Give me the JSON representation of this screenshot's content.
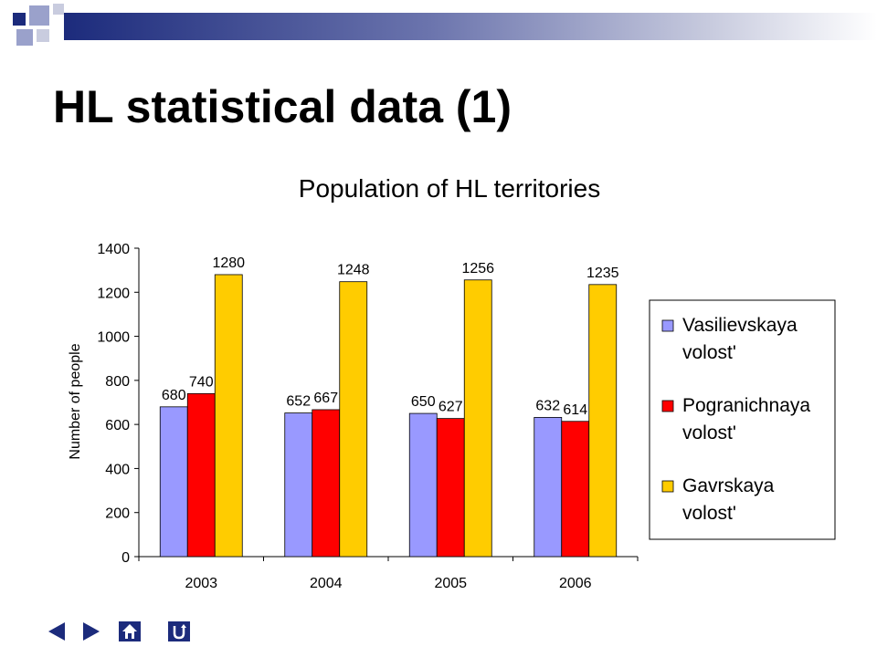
{
  "slide": {
    "title": "HL statistical data (1)"
  },
  "theme": {
    "deco_dark": "#1c2b7c",
    "deco_light": "#9aa1cb",
    "deco_pale": "#c9ccdf",
    "nav_button": "#1c2b7c"
  },
  "chart_data": {
    "type": "bar",
    "title": "Population of HL territories",
    "xlabel": "",
    "ylabel": "Number of people",
    "categories": [
      "2003",
      "2004",
      "2005",
      "2006"
    ],
    "ylim": [
      0,
      1400
    ],
    "yticks": [
      0,
      200,
      400,
      600,
      800,
      1000,
      1200,
      1400
    ],
    "grid": false,
    "legend_position": "right",
    "series": [
      {
        "name": "Vasilievskaya volost'",
        "color": "#9999ff",
        "values": [
          680,
          652,
          650,
          632
        ]
      },
      {
        "name": "Pogranichnaya volost'",
        "color": "#ff0000",
        "values": [
          740,
          667,
          627,
          614
        ]
      },
      {
        "name": "Gavrskaya volost'",
        "color": "#ffcc00",
        "values": [
          1280,
          1248,
          1256,
          1235
        ]
      }
    ]
  },
  "nav": {
    "buttons": [
      {
        "name": "previous-slide-button",
        "icon": "triangle-left-icon"
      },
      {
        "name": "next-slide-button",
        "icon": "triangle-right-icon"
      },
      {
        "name": "home-button",
        "icon": "home-icon"
      },
      {
        "name": "return-button",
        "icon": "return-arrow-icon"
      }
    ]
  }
}
